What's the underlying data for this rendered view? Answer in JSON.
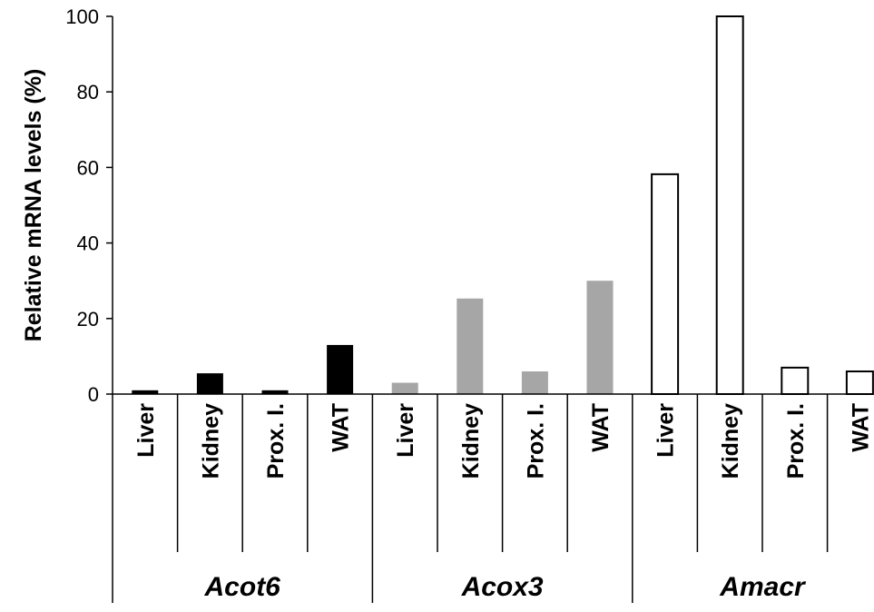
{
  "chart_data": {
    "type": "bar",
    "ylabel": "Relative mRNA levels (%)",
    "ylim": [
      0,
      100
    ],
    "yticks": [
      "0",
      "20",
      "40",
      "60",
      "80",
      "100"
    ],
    "grid": false,
    "groups": [
      {
        "name": "Acot6",
        "color": "#000000",
        "categories": [
          "Liver",
          "Kidney",
          "Prox. I.",
          "WAT"
        ],
        "values": [
          1,
          5.5,
          1,
          13
        ]
      },
      {
        "name": "Acox3",
        "color": "#a6a6a6",
        "categories": [
          "Liver",
          "Kidney",
          "Prox. I.",
          "WAT"
        ],
        "values": [
          3,
          25.3,
          6,
          30
        ]
      },
      {
        "name": "Amacr",
        "color": "#ffffff",
        "categories": [
          "Liver",
          "Kidney",
          "Prox. I.",
          "WAT"
        ],
        "values": [
          58.2,
          100,
          7,
          6
        ]
      }
    ]
  }
}
